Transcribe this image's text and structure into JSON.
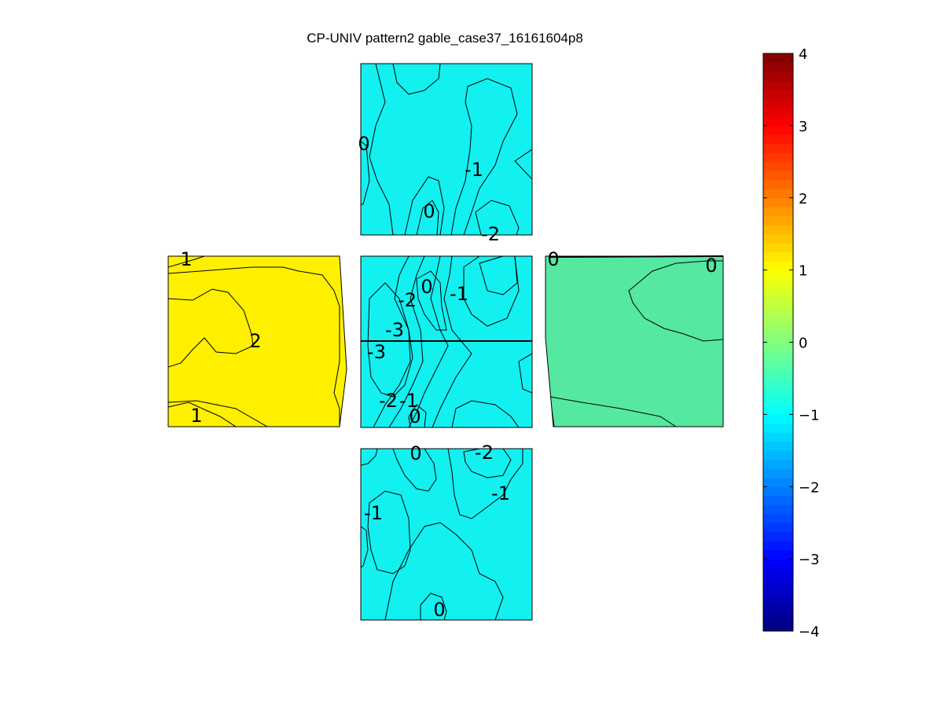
{
  "chart_data": {
    "type": "heatmap",
    "title": "CP-UNIV pattern2 gable_case37_16161604p8",
    "colorbar": {
      "min": -4,
      "max": 4,
      "ticks": [
        -4,
        -3,
        -2,
        -1,
        0,
        1,
        2,
        3,
        4
      ],
      "colormap": "jet",
      "placement": "right"
    },
    "panels": [
      {
        "name": "top",
        "labels": [
          "0",
          "-1",
          "0",
          "-2"
        ]
      },
      {
        "name": "left",
        "labels": [
          "1",
          "2",
          "1"
        ]
      },
      {
        "name": "center",
        "labels": [
          "-2",
          "0",
          "-1",
          "-3",
          "-3",
          "-2",
          "-1",
          "0"
        ]
      },
      {
        "name": "right",
        "labels": [
          "0",
          "0"
        ]
      },
      {
        "name": "bottom",
        "labels": [
          "0",
          "-2",
          "-1",
          "-1",
          "0"
        ]
      }
    ]
  }
}
